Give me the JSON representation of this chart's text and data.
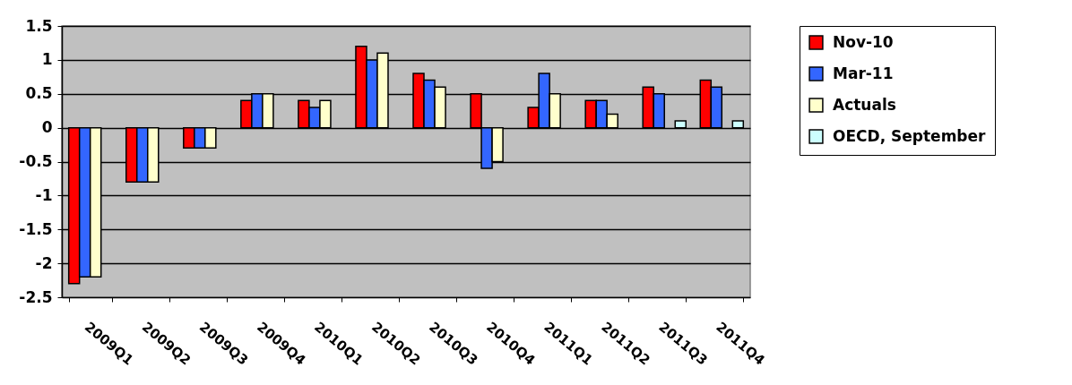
{
  "chart_data": {
    "type": "bar",
    "categories": [
      "2009Q1",
      "2009Q2",
      "2009Q3",
      "2009Q4",
      "2010Q1",
      "2010Q2",
      "2010Q3",
      "2010Q4",
      "2011Q1",
      "2011Q2",
      "2011Q3",
      "2011Q4"
    ],
    "series": [
      {
        "name": "Nov-10",
        "color": "#ff0000",
        "values": [
          -2.3,
          -0.8,
          -0.3,
          0.4,
          0.4,
          1.2,
          0.8,
          0.5,
          0.3,
          0.4,
          0.6,
          0.7
        ]
      },
      {
        "name": "Mar-11",
        "color": "#3366ff",
        "values": [
          -2.2,
          -0.8,
          -0.3,
          0.5,
          0.3,
          1.0,
          0.7,
          -0.6,
          0.8,
          0.4,
          0.5,
          0.6
        ]
      },
      {
        "name": "Actuals",
        "color": "#ffffcc",
        "values": [
          -2.2,
          -0.8,
          -0.3,
          0.5,
          0.4,
          1.1,
          0.6,
          -0.5,
          0.5,
          0.2,
          null,
          null
        ]
      },
      {
        "name": "OECD, September",
        "color": "#ccffff",
        "values": [
          null,
          null,
          null,
          null,
          null,
          null,
          null,
          null,
          null,
          null,
          0.1,
          0.1
        ]
      }
    ],
    "ylim": [
      -2.5,
      1.5
    ],
    "yticks": [
      -2.5,
      -2,
      -1.5,
      -1,
      -0.5,
      0,
      0.5,
      1,
      1.5
    ],
    "grid": "y",
    "legend": "right"
  }
}
